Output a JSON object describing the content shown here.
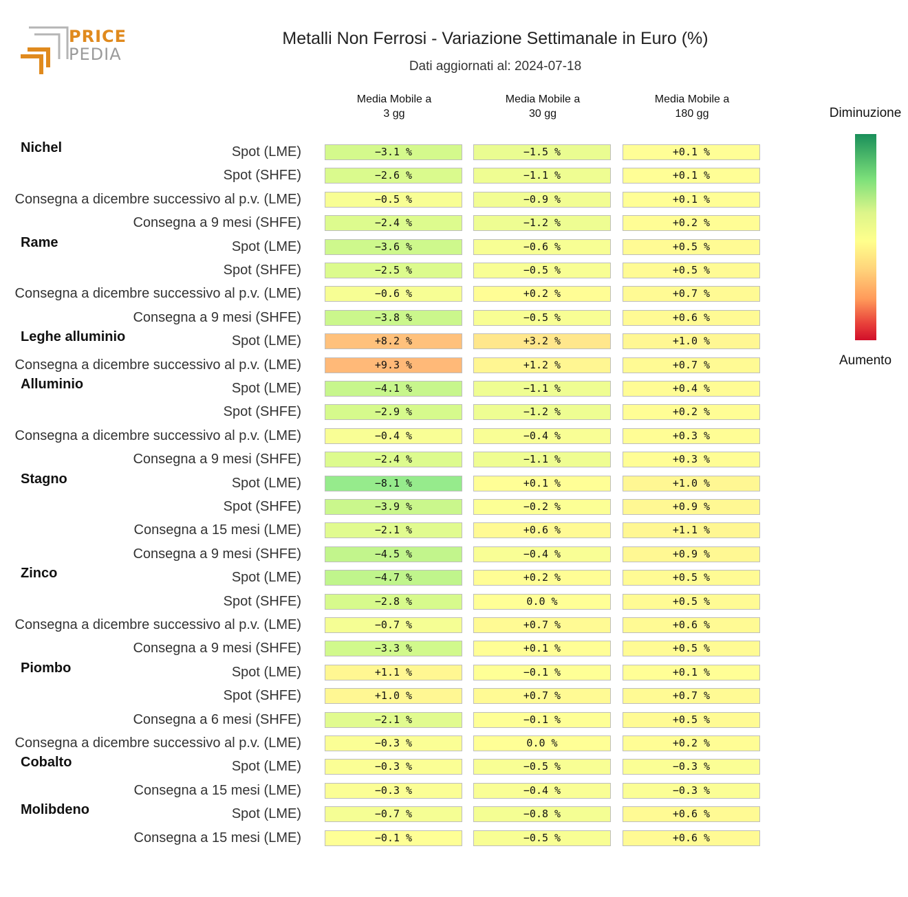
{
  "logo": {
    "line1": "PRICE",
    "line2": "PEDIA"
  },
  "title": "Metalli Non Ferrosi - Variazione Settimanale in Euro (%)",
  "subtitle": "Dati aggiornati al: 2024-07-18",
  "legend": {
    "top": "Diminuzione",
    "bottom": "Aumento"
  },
  "colors": {
    "accent": "#e08a1e",
    "scale": [
      "#1a8f5a",
      "#7de07a",
      "#ffff8c",
      "#ff9a5a",
      "#d10f2a"
    ]
  },
  "chart_data": {
    "type": "table",
    "columns": [
      "Media Mobile a\n3 gg",
      "Media Mobile a\n30 gg",
      "Media Mobile a\n180 gg"
    ],
    "unit": "%",
    "rows": [
      {
        "group": "Nichel",
        "label": "Spot (LME)",
        "values": [
          -3.1,
          -1.5,
          0.1
        ]
      },
      {
        "group": "",
        "label": "Spot (SHFE)",
        "values": [
          -2.6,
          -1.1,
          0.1
        ]
      },
      {
        "group": "",
        "label": "Consegna a dicembre successivo al p.v. (LME)",
        "values": [
          -0.5,
          -0.9,
          0.1
        ]
      },
      {
        "group": "",
        "label": "Consegna a 9 mesi (SHFE)",
        "values": [
          -2.4,
          -1.2,
          0.2
        ]
      },
      {
        "group": "Rame",
        "label": "Spot (LME)",
        "values": [
          -3.6,
          -0.6,
          0.5
        ]
      },
      {
        "group": "",
        "label": "Spot (SHFE)",
        "values": [
          -2.5,
          -0.5,
          0.5
        ]
      },
      {
        "group": "",
        "label": "Consegna a dicembre successivo al p.v. (LME)",
        "values": [
          -0.6,
          0.2,
          0.7
        ]
      },
      {
        "group": "",
        "label": "Consegna a 9 mesi (SHFE)",
        "values": [
          -3.8,
          -0.5,
          0.6
        ]
      },
      {
        "group": "Leghe alluminio",
        "label": "Spot (LME)",
        "values": [
          8.2,
          3.2,
          1.0
        ]
      },
      {
        "group": "",
        "label": "Consegna a dicembre successivo al p.v. (LME)",
        "values": [
          9.3,
          1.2,
          0.7
        ]
      },
      {
        "group": "Alluminio",
        "label": "Spot (LME)",
        "values": [
          -4.1,
          -1.1,
          0.4
        ]
      },
      {
        "group": "",
        "label": "Spot (SHFE)",
        "values": [
          -2.9,
          -1.2,
          0.2
        ]
      },
      {
        "group": "",
        "label": "Consegna a dicembre successivo al p.v. (LME)",
        "values": [
          -0.4,
          -0.4,
          0.3
        ]
      },
      {
        "group": "",
        "label": "Consegna a 9 mesi (SHFE)",
        "values": [
          -2.4,
          -1.1,
          0.3
        ]
      },
      {
        "group": "Stagno",
        "label": "Spot (LME)",
        "values": [
          -8.1,
          0.1,
          1.0
        ]
      },
      {
        "group": "",
        "label": "Spot (SHFE)",
        "values": [
          -3.9,
          -0.2,
          0.9
        ]
      },
      {
        "group": "",
        "label": "Consegna a 15 mesi (LME)",
        "values": [
          -2.1,
          0.6,
          1.1
        ]
      },
      {
        "group": "",
        "label": "Consegna a 9 mesi (SHFE)",
        "values": [
          -4.5,
          -0.4,
          0.9
        ]
      },
      {
        "group": "Zinco",
        "label": "Spot (LME)",
        "values": [
          -4.7,
          0.2,
          0.5
        ]
      },
      {
        "group": "",
        "label": "Spot (SHFE)",
        "values": [
          -2.8,
          0.0,
          0.5
        ]
      },
      {
        "group": "",
        "label": "Consegna a dicembre successivo al p.v. (LME)",
        "values": [
          -0.7,
          0.7,
          0.6
        ]
      },
      {
        "group": "",
        "label": "Consegna a 9 mesi (SHFE)",
        "values": [
          -3.3,
          0.1,
          0.5
        ]
      },
      {
        "group": "Piombo",
        "label": "Spot (LME)",
        "values": [
          1.1,
          -0.1,
          0.1
        ]
      },
      {
        "group": "",
        "label": "Spot (SHFE)",
        "values": [
          1.0,
          0.7,
          0.7
        ]
      },
      {
        "group": "",
        "label": "Consegna a 6 mesi (SHFE)",
        "values": [
          -2.1,
          -0.1,
          0.5
        ]
      },
      {
        "group": "",
        "label": "Consegna a dicembre successivo al p.v. (LME)",
        "values": [
          -0.3,
          0.0,
          0.2
        ]
      },
      {
        "group": "Cobalto",
        "label": "Spot (LME)",
        "values": [
          -0.3,
          -0.5,
          -0.3
        ]
      },
      {
        "group": "",
        "label": "Consegna a 15 mesi (LME)",
        "values": [
          -0.3,
          -0.4,
          -0.3
        ]
      },
      {
        "group": "Molibdeno",
        "label": "Spot (LME)",
        "values": [
          -0.7,
          -0.8,
          0.6
        ]
      },
      {
        "group": "",
        "label": "Consegna a 15 mesi (LME)",
        "values": [
          -0.1,
          -0.5,
          0.6
        ]
      }
    ]
  }
}
